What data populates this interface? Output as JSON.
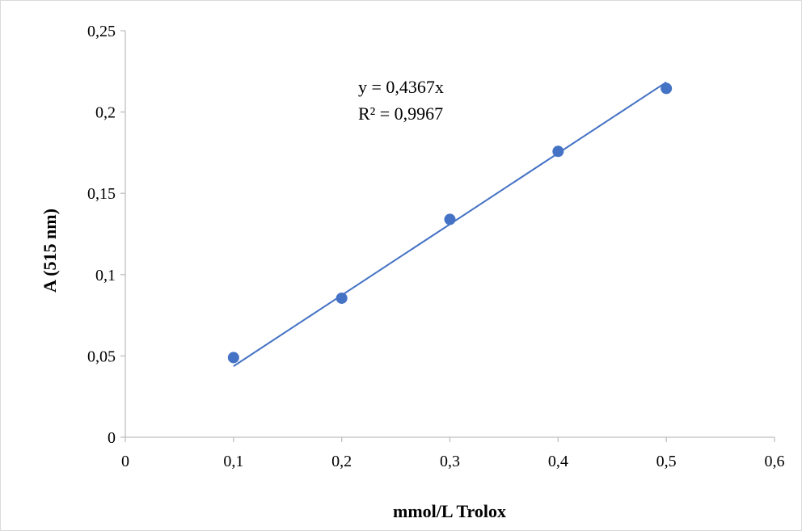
{
  "chart_data": {
    "type": "scatter",
    "xlabel": "mmol/L Trolox",
    "ylabel": "A (515 nm)",
    "xlim": [
      0,
      0.6
    ],
    "ylim": [
      0,
      0.25
    ],
    "x_ticks": [
      0,
      0.1,
      0.2,
      0.3,
      0.4,
      0.5,
      0.6
    ],
    "x_tick_labels": [
      "0",
      "0,1",
      "0,2",
      "0,3",
      "0,4",
      "0,5",
      "0,6"
    ],
    "y_ticks": [
      0,
      0.05,
      0.1,
      0.15,
      0.2,
      0.25
    ],
    "y_tick_labels": [
      "0",
      "0,05",
      "0,1",
      "0,15",
      "0,2",
      "0,25"
    ],
    "grid": false,
    "legend": "none",
    "series": [
      {
        "x": [
          0.1,
          0.2,
          0.3,
          0.4,
          0.5
        ],
        "y": [
          0.049,
          0.0855,
          0.134,
          0.1758,
          0.2145
        ],
        "color": "#4472C4"
      }
    ],
    "trendline": {
      "type": "linear",
      "slope": 0.4367,
      "intercept": 0,
      "x_range": [
        0.1,
        0.5
      ],
      "color": "#4472C4"
    },
    "annotations": {
      "equation": "y = 0,4367x",
      "r_squared": "R² = 0,9967"
    }
  }
}
